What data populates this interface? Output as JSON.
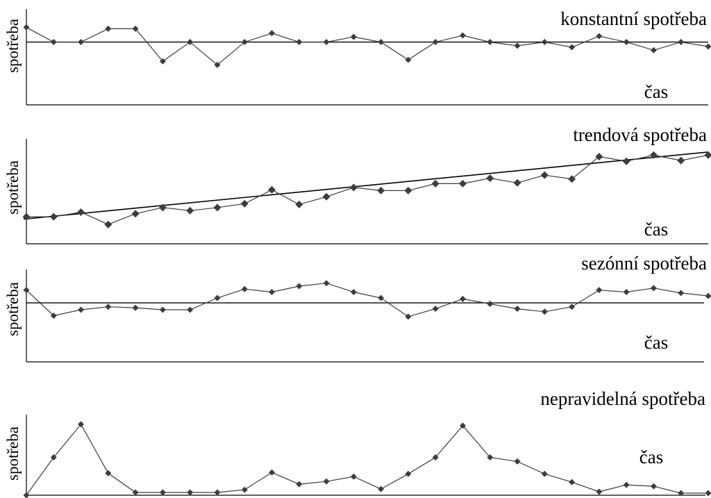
{
  "chart_data": [
    {
      "type": "line",
      "title": "konstantní spotřeba",
      "xlabel": "čas",
      "ylabel": "spotřeba",
      "reference_line": "horizontal",
      "values": [
        3.0,
        1.0,
        1.0,
        2.8,
        2.8,
        -1.6,
        1.0,
        -2.1,
        1.0,
        2.2,
        1.0,
        1.0,
        1.7,
        1.0,
        -1.4,
        1.0,
        1.9,
        1.0,
        0.5,
        1.0,
        0.3,
        1.8,
        1.0,
        -0.1,
        1.0,
        0.4
      ],
      "ylim": [
        -7.5,
        5
      ],
      "reference_value": 1.0
    },
    {
      "type": "line",
      "title": "trendová spotřeba",
      "xlabel": "čas",
      "ylabel": "spotřeba",
      "reference_line": "trend",
      "values": [
        1.0,
        1.0,
        1.6,
        0.0,
        1.4,
        2.2,
        1.8,
        2.2,
        2.7,
        4.5,
        2.6,
        3.6,
        4.8,
        4.4,
        4.4,
        5.3,
        5.3,
        6.0,
        5.4,
        6.4,
        5.9,
        8.8,
        8.2,
        9.0,
        8.3,
        9.0
      ],
      "ylim": [
        -2.5,
        12
      ],
      "trend": [
        0.7,
        9.4
      ]
    },
    {
      "type": "line",
      "title": "sezónní spotřeba",
      "xlabel": "čas",
      "ylabel": "spotřeba",
      "reference_line": "horizontal",
      "values": [
        1.3,
        -1.3,
        -0.7,
        -0.4,
        -0.5,
        -0.7,
        -0.7,
        0.5,
        1.4,
        1.1,
        1.7,
        2.0,
        1.1,
        0.5,
        -1.4,
        -0.6,
        0.4,
        -0.1,
        -0.6,
        -0.9,
        -0.4,
        1.3,
        1.1,
        1.5,
        1.0,
        0.7
      ],
      "ylim": [
        -6,
        2.9
      ],
      "reference_value": 0
    },
    {
      "type": "line",
      "title": "nepravidelná spotřeba",
      "xlabel": "čas",
      "ylabel": "spotřeba",
      "values": [
        0.0,
        5.5,
        10.3,
        3.2,
        0.4,
        0.4,
        0.4,
        0.4,
        0.8,
        3.3,
        1.6,
        2.0,
        2.7,
        0.9,
        3.1,
        5.5,
        10.1,
        5.5,
        4.9,
        3.1,
        1.9,
        0.5,
        1.5,
        1.3,
        0.3,
        0.3
      ],
      "ylim": [
        0,
        12
      ]
    }
  ]
}
